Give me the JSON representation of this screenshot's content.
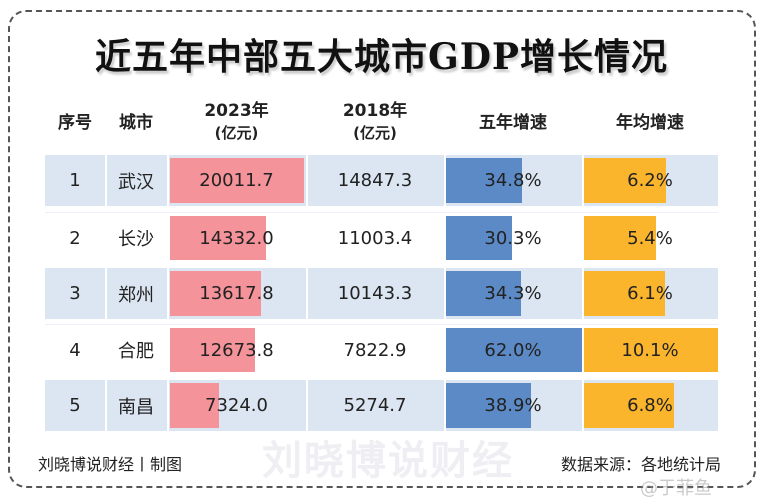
{
  "title": "近五年中部五大城市GDP增长情况",
  "headers": {
    "no": "序号",
    "city": "城市",
    "y2023": "2023年",
    "y2023_unit": "(亿元)",
    "y2018": "2018年",
    "y2018_unit": "(亿元)",
    "growth5": "五年增速",
    "annual": "年均增速"
  },
  "rows": [
    {
      "no": "1",
      "city": "武汉",
      "y2023": "20011.7",
      "y2018": "14847.3",
      "growth5": "34.8%",
      "annual": "6.2%",
      "v2023": 20011.7,
      "vg": 34.8,
      "va": 6.2
    },
    {
      "no": "2",
      "city": "长沙",
      "y2023": "14332.0",
      "y2018": "11003.4",
      "growth5": "30.3%",
      "annual": "5.4%",
      "v2023": 14332.0,
      "vg": 30.3,
      "va": 5.4
    },
    {
      "no": "3",
      "city": "郑州",
      "y2023": "13617.8",
      "y2018": "10143.3",
      "growth5": "34.3%",
      "annual": "6.1%",
      "v2023": 13617.8,
      "vg": 34.3,
      "va": 6.1
    },
    {
      "no": "4",
      "city": "合肥",
      "y2023": "12673.8",
      "y2018": "7822.9",
      "growth5": "62.0%",
      "annual": "10.1%",
      "v2023": 12673.8,
      "vg": 62.0,
      "va": 10.1
    },
    {
      "no": "5",
      "city": "南昌",
      "y2023": "7324.0",
      "y2018": "5274.7",
      "growth5": "38.9%",
      "annual": "6.8%",
      "v2023": 7324.0,
      "vg": 38.9,
      "va": 6.8
    }
  ],
  "colors": {
    "gdp_bar": "#f4939a",
    "growth_bar": "#5b8ac6",
    "annual_bar": "#fbb52c",
    "row_bg": "#dbe6f2"
  },
  "watermark": "刘晓博说财经",
  "footer": {
    "left": "刘晓博说财经丨制图",
    "right": "数据来源：各地统计局"
  },
  "corner_watermark": "@于菲鱼"
}
